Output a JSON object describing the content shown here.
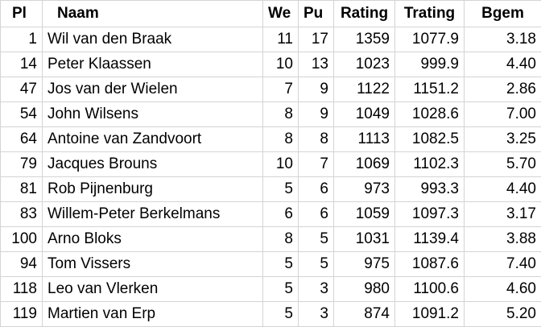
{
  "headers": {
    "pl": "Pl",
    "naam": "Naam",
    "we": "We",
    "pu": "Pu",
    "rating": "Rating",
    "trating": "Trating",
    "bgem": "Bgem"
  },
  "rows": [
    {
      "pl": "1",
      "naam": "Wil van den Braak",
      "we": "11",
      "pu": "17",
      "rating": "1359",
      "trating": "1077.9",
      "bgem": "3.18"
    },
    {
      "pl": "14",
      "naam": "Peter Klaassen",
      "we": "10",
      "pu": "13",
      "rating": "1023",
      "trating": "999.9",
      "bgem": "4.40"
    },
    {
      "pl": "47",
      "naam": "Jos van der Wielen",
      "we": "7",
      "pu": "9",
      "rating": "1122",
      "trating": "1151.2",
      "bgem": "2.86"
    },
    {
      "pl": "54",
      "naam": "John Wilsens",
      "we": "8",
      "pu": "9",
      "rating": "1049",
      "trating": "1028.6",
      "bgem": "7.00"
    },
    {
      "pl": "64",
      "naam": "Antoine van Zandvoort",
      "we": "8",
      "pu": "8",
      "rating": "1113",
      "trating": "1082.5",
      "bgem": "3.25"
    },
    {
      "pl": "79",
      "naam": "Jacques Brouns",
      "we": "10",
      "pu": "7",
      "rating": "1069",
      "trating": "1102.3",
      "bgem": "5.70"
    },
    {
      "pl": "81",
      "naam": "Rob Pijnenburg",
      "we": "5",
      "pu": "6",
      "rating": "973",
      "trating": "993.3",
      "bgem": "4.40"
    },
    {
      "pl": "83",
      "naam": "Willem-Peter Berkelmans",
      "we": "6",
      "pu": "6",
      "rating": "1059",
      "trating": "1097.3",
      "bgem": "3.17"
    },
    {
      "pl": "100",
      "naam": "Arno Bloks",
      "we": "8",
      "pu": "5",
      "rating": "1031",
      "trating": "1139.4",
      "bgem": "3.88"
    },
    {
      "pl": "94",
      "naam": "Tom Vissers",
      "we": "5",
      "pu": "5",
      "rating": "975",
      "trating": "1087.6",
      "bgem": "7.40"
    },
    {
      "pl": "118",
      "naam": "Leo van Vlerken",
      "we": "5",
      "pu": "3",
      "rating": "980",
      "trating": "1100.6",
      "bgem": "4.60"
    },
    {
      "pl": "119",
      "naam": "Martien van Erp",
      "we": "5",
      "pu": "3",
      "rating": "874",
      "trating": "1091.2",
      "bgem": "5.20"
    }
  ]
}
